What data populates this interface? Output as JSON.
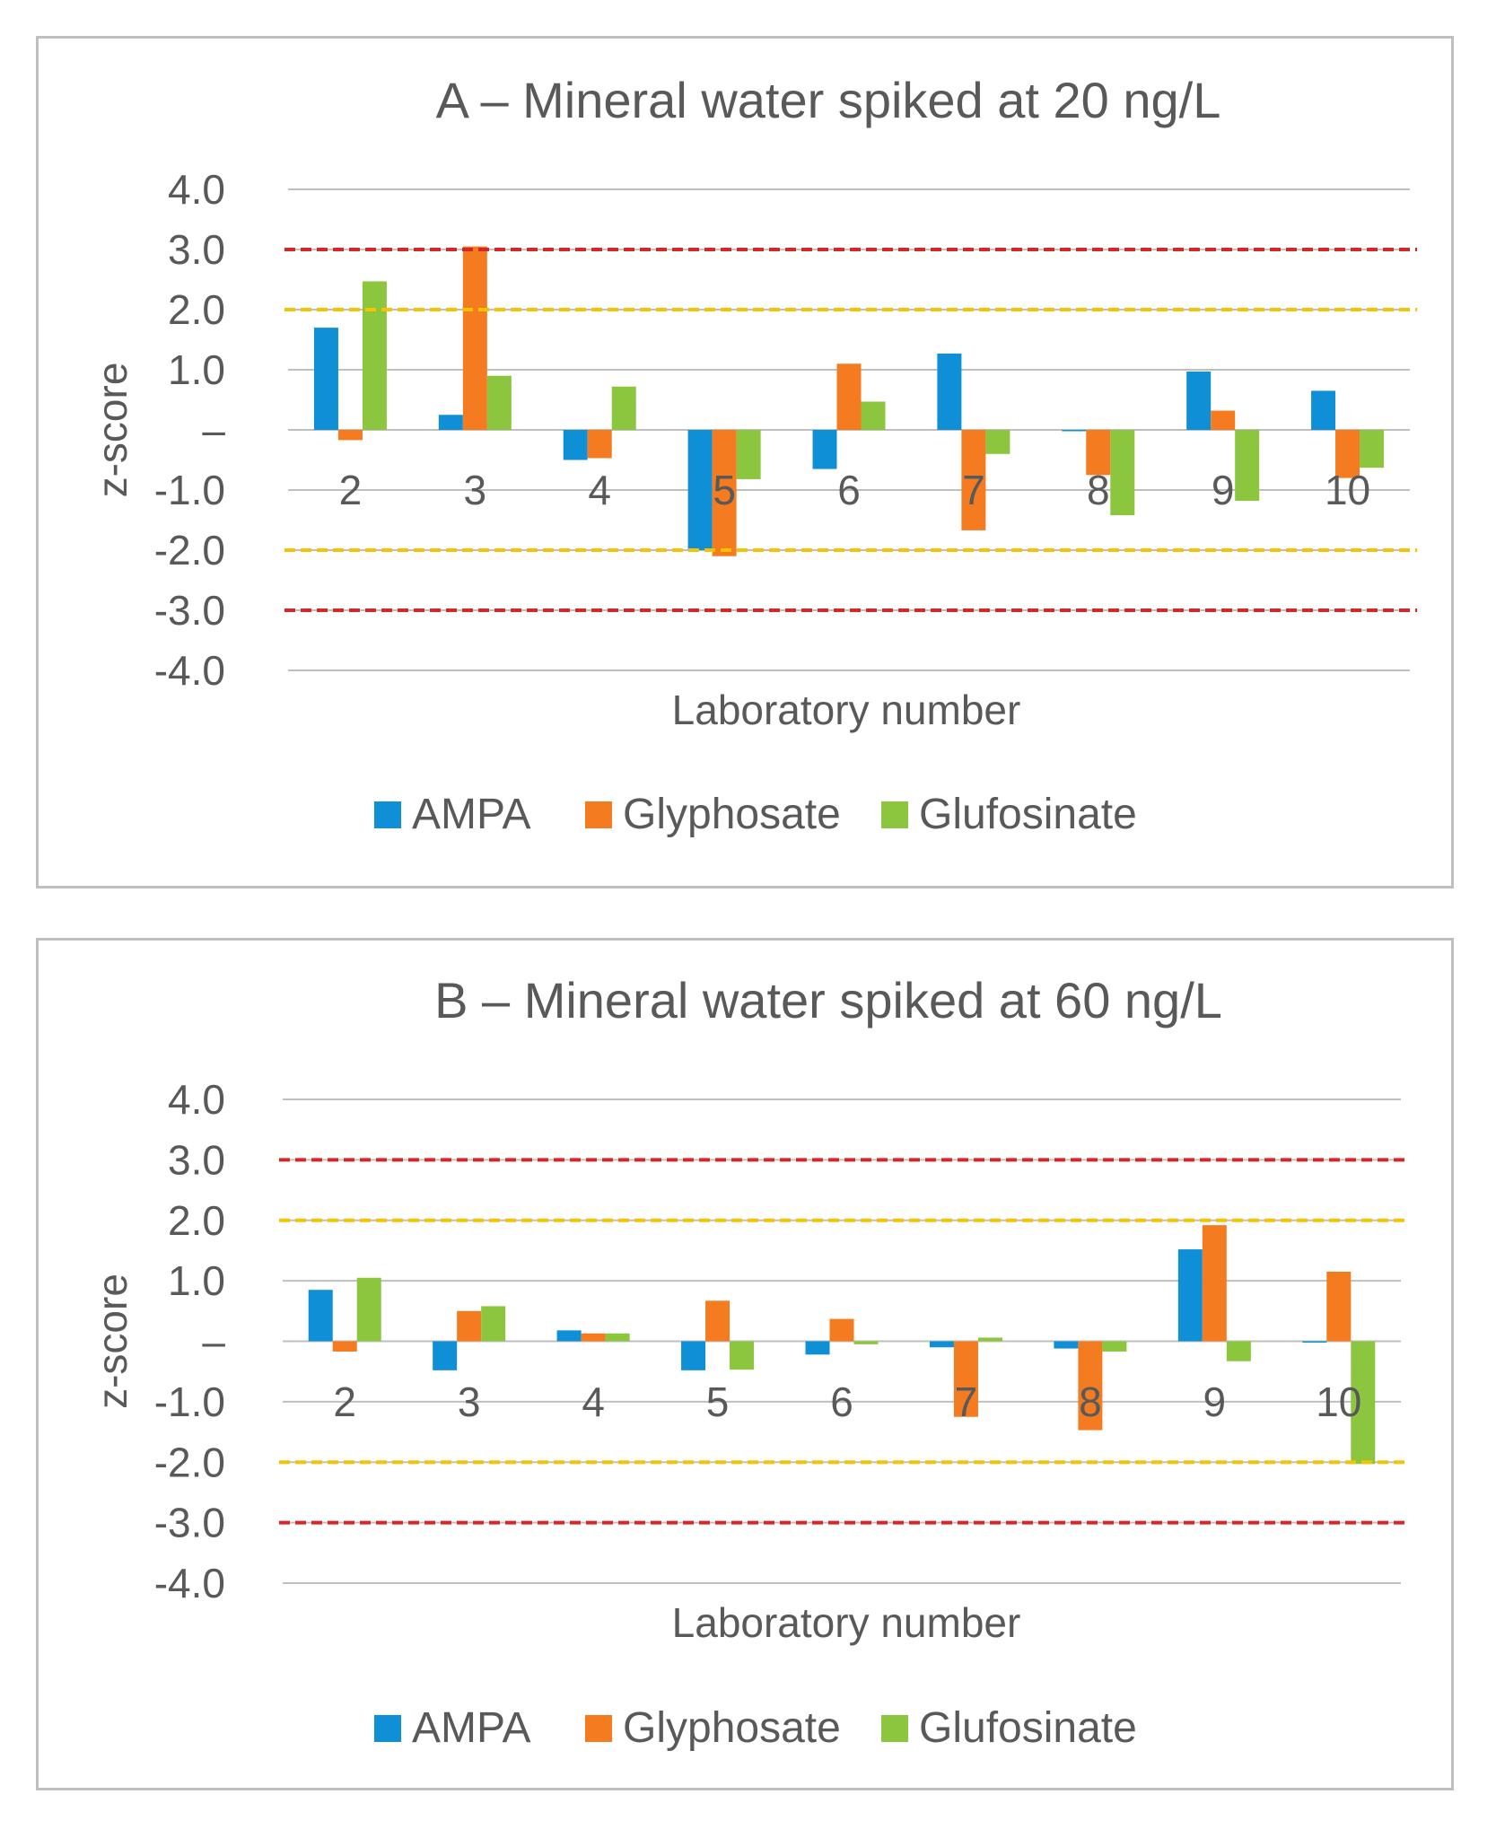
{
  "colors": {
    "AMPA": "#0f8fd6",
    "Glyphosate": "#f47b20",
    "Glufosinate": "#8cc63f",
    "grid": "#bfbfbf",
    "limit_action": "#d62728",
    "limit_warning": "#f5c400",
    "text": "#595959"
  },
  "chart_data": [
    {
      "type": "bar",
      "title": "A – Mineral water spiked at 20 ng/L",
      "xlabel": "Laboratory number",
      "ylabel": "z-score",
      "ylim": [
        -4,
        4
      ],
      "yticks": [
        4,
        3,
        2,
        1,
        0,
        -1,
        -2,
        -3,
        -4
      ],
      "ytick_labels": [
        "4.0",
        "3.0",
        "2.0",
        "1.0",
        "–",
        "-1.0",
        "-2.0",
        "-3.0",
        "-4.0"
      ],
      "categories": [
        "2",
        "3",
        "4",
        "5",
        "6",
        "7",
        "8",
        "9",
        "10"
      ],
      "series": [
        {
          "name": "AMPA",
          "values": [
            1.7,
            0.25,
            -0.5,
            -2.0,
            -0.65,
            1.27,
            -0.02,
            0.97,
            0.65
          ]
        },
        {
          "name": "Glyphosate",
          "values": [
            -0.17,
            3.05,
            -0.47,
            -2.1,
            1.1,
            -1.67,
            -0.75,
            0.32,
            -0.8
          ]
        },
        {
          "name": "Glufosinate",
          "values": [
            2.47,
            0.9,
            0.72,
            -0.82,
            0.47,
            -0.4,
            -1.42,
            -1.18,
            -0.63
          ]
        }
      ],
      "reference_lines": [
        {
          "value": 3,
          "kind": "action"
        },
        {
          "value": -3,
          "kind": "action"
        },
        {
          "value": 2,
          "kind": "warning"
        },
        {
          "value": -2,
          "kind": "warning"
        }
      ],
      "legend": [
        "AMPA",
        "Glyphosate",
        "Glufosinate"
      ],
      "legend_position": "bottom"
    },
    {
      "type": "bar",
      "title": "B – Mineral water spiked at 60 ng/L",
      "xlabel": "Laboratory number",
      "ylabel": "z-score",
      "ylim": [
        -4,
        4
      ],
      "yticks": [
        4,
        3,
        2,
        1,
        0,
        -1,
        -2,
        -3,
        -4
      ],
      "ytick_labels": [
        "4.0",
        "3.0",
        "2.0",
        "1.0",
        "–",
        "-1.0",
        "-2.0",
        "-3.0",
        "-4.0"
      ],
      "categories": [
        "2",
        "3",
        "4",
        "5",
        "6",
        "7",
        "8",
        "9",
        "10"
      ],
      "series": [
        {
          "name": "AMPA",
          "values": [
            0.85,
            -0.48,
            0.18,
            -0.48,
            -0.22,
            -0.1,
            -0.12,
            1.52,
            -0.02
          ]
        },
        {
          "name": "Glyphosate",
          "values": [
            -0.17,
            0.5,
            0.13,
            0.67,
            0.37,
            -1.25,
            -1.47,
            1.92,
            1.15
          ]
        },
        {
          "name": "Glufosinate",
          "values": [
            1.05,
            0.58,
            0.13,
            -0.47,
            -0.05,
            0.06,
            -0.17,
            -0.33,
            -2.03
          ]
        }
      ],
      "reference_lines": [
        {
          "value": 3,
          "kind": "action"
        },
        {
          "value": -3,
          "kind": "action"
        },
        {
          "value": 2,
          "kind": "warning"
        },
        {
          "value": -2,
          "kind": "warning"
        }
      ],
      "legend": [
        "AMPA",
        "Glyphosate",
        "Glufosinate"
      ],
      "legend_position": "bottom"
    }
  ]
}
